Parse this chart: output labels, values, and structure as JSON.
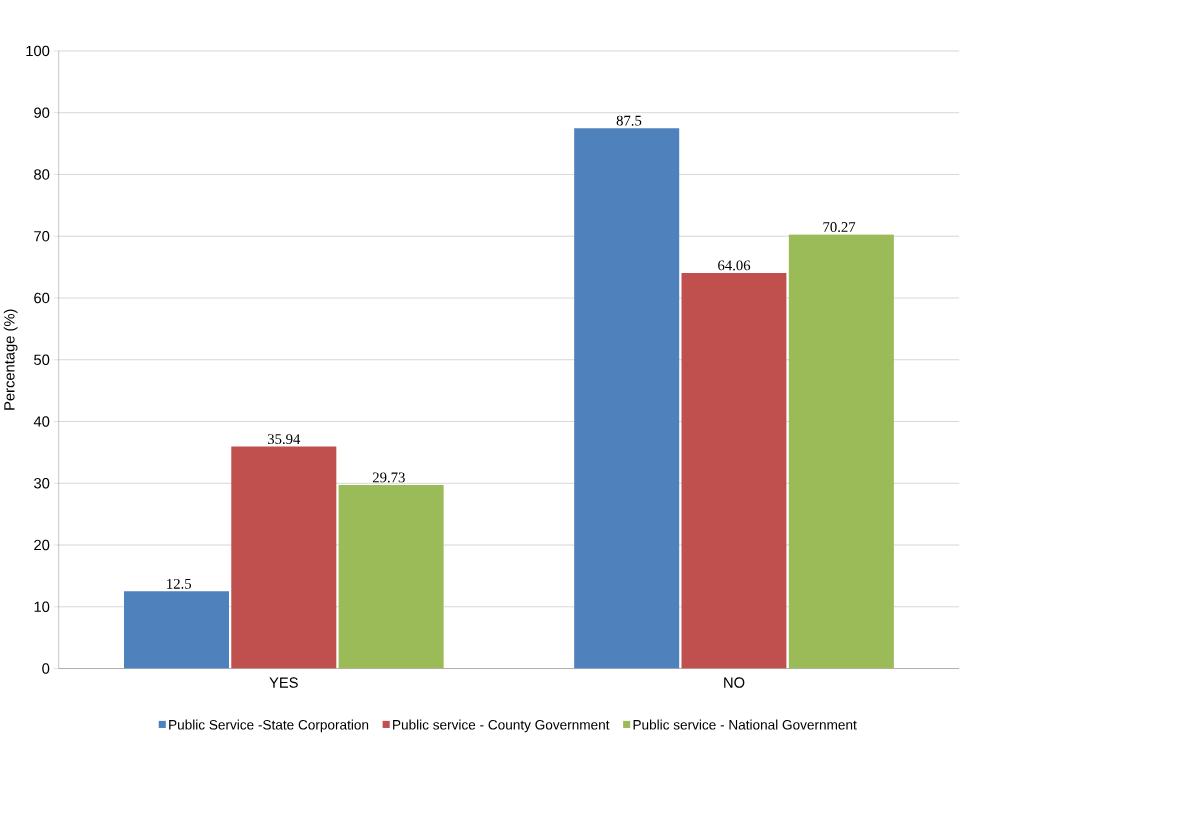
{
  "chart_data": {
    "type": "bar",
    "ylabel": "Percentage (%)",
    "categories": [
      "YES",
      "NO"
    ],
    "series": [
      {
        "name": "Public Service -State Corporation",
        "color": "#4f81bd",
        "values": [
          12.5,
          87.5
        ]
      },
      {
        "name": "Public service - County Government",
        "color": "#c0504d",
        "values": [
          35.94,
          64.06
        ]
      },
      {
        "name": "Public service - National Government",
        "color": "#9bbb59",
        "values": [
          29.73,
          70.27
        ]
      }
    ],
    "ylim": [
      0,
      100
    ],
    "yticks": [
      0,
      10,
      20,
      30,
      40,
      50,
      60,
      70,
      80,
      90,
      100
    ],
    "grid": "y",
    "legend": "bottom",
    "data_labels": true
  }
}
